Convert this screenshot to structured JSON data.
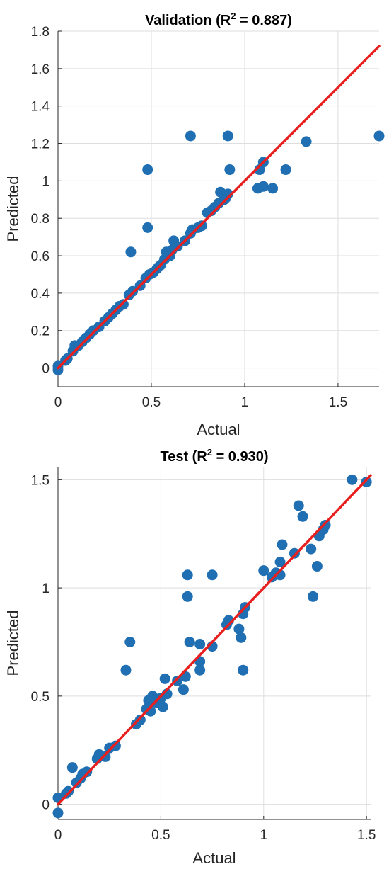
{
  "chart_data": [
    {
      "type": "scatter",
      "title": {
        "prefix": "Validation (R",
        "sup": "2",
        "suffix": " = 0.887)"
      },
      "xlabel": "Actual",
      "ylabel": "Predicted",
      "xlim": [
        0,
        1.72
      ],
      "ylim": [
        -0.1,
        1.8
      ],
      "xticks": [
        0,
        0.5,
        1,
        1.5
      ],
      "xtick_labels": [
        "0",
        "0.5",
        "1",
        "1.5"
      ],
      "yticks": [
        0,
        0.2,
        0.4,
        0.6,
        0.8,
        1,
        1.2,
        1.4,
        1.6,
        1.8
      ],
      "ytick_labels": [
        "0",
        "0.2",
        "0.4",
        "0.6",
        "0.8",
        "1",
        "1.2",
        "1.4",
        "1.6",
        "1.8"
      ],
      "grid": true,
      "colors": {
        "points": "#1f6fb2",
        "fit_line": "#e81f1f",
        "grid": "#dedede",
        "axis": "#262626"
      },
      "fit_line": {
        "x": [
          0,
          1.72
        ],
        "y": [
          0,
          1.72
        ]
      },
      "points": [
        [
          0.0,
          -0.01
        ],
        [
          0.0,
          0.01
        ],
        [
          0.04,
          0.04
        ],
        [
          0.05,
          0.05
        ],
        [
          0.08,
          0.09
        ],
        [
          0.09,
          0.12
        ],
        [
          0.11,
          0.12
        ],
        [
          0.13,
          0.14
        ],
        [
          0.15,
          0.16
        ],
        [
          0.17,
          0.18
        ],
        [
          0.19,
          0.2
        ],
        [
          0.22,
          0.22
        ],
        [
          0.25,
          0.25
        ],
        [
          0.27,
          0.27
        ],
        [
          0.29,
          0.29
        ],
        [
          0.31,
          0.31
        ],
        [
          0.33,
          0.33
        ],
        [
          0.35,
          0.34
        ],
        [
          0.38,
          0.39
        ],
        [
          0.4,
          0.41
        ],
        [
          0.44,
          0.44
        ],
        [
          0.47,
          0.48
        ],
        [
          0.49,
          0.5
        ],
        [
          0.51,
          0.51
        ],
        [
          0.53,
          0.53
        ],
        [
          0.55,
          0.55
        ],
        [
          0.57,
          0.58
        ],
        [
          0.58,
          0.62
        ],
        [
          0.6,
          0.6
        ],
        [
          0.61,
          0.63
        ],
        [
          0.62,
          0.68
        ],
        [
          0.64,
          0.65
        ],
        [
          0.68,
          0.68
        ],
        [
          0.71,
          0.72
        ],
        [
          0.72,
          0.74
        ],
        [
          0.75,
          0.75
        ],
        [
          0.77,
          0.76
        ],
        [
          0.8,
          0.83
        ],
        [
          0.82,
          0.84
        ],
        [
          0.84,
          0.86
        ],
        [
          0.86,
          0.88
        ],
        [
          0.87,
          0.94
        ],
        [
          0.89,
          0.9
        ],
        [
          0.9,
          0.91
        ],
        [
          0.91,
          0.93
        ],
        [
          0.39,
          0.62
        ],
        [
          0.48,
          0.75
        ],
        [
          0.48,
          1.06
        ],
        [
          0.71,
          1.24
        ],
        [
          0.91,
          1.24
        ],
        [
          0.92,
          1.06
        ],
        [
          1.07,
          0.96
        ],
        [
          1.08,
          1.06
        ],
        [
          1.1,
          1.1
        ],
        [
          1.1,
          0.97
        ],
        [
          1.15,
          0.96
        ],
        [
          1.22,
          1.06
        ],
        [
          1.33,
          1.21
        ],
        [
          1.72,
          1.24
        ]
      ]
    },
    {
      "type": "scatter",
      "title": {
        "prefix": "Test (R",
        "sup": "2",
        "suffix": " = 0.930)"
      },
      "xlabel": "Actual",
      "ylabel": "Predicted",
      "xlim": [
        0,
        1.52
      ],
      "ylim": [
        -0.07,
        1.56
      ],
      "xticks": [
        0,
        0.5,
        1,
        1.5
      ],
      "xtick_labels": [
        "0",
        "0.5",
        "1",
        "1.5"
      ],
      "yticks": [
        0,
        0.5,
        1,
        1.5
      ],
      "ytick_labels": [
        "0",
        "0.5",
        "1",
        "1.5"
      ],
      "grid": true,
      "colors": {
        "points": "#1f6fb2",
        "fit_line": "#e81f1f",
        "grid": "#dedede",
        "axis": "#262626"
      },
      "fit_line": {
        "x": [
          0,
          1.52
        ],
        "y": [
          0,
          1.52
        ]
      },
      "points": [
        [
          0.0,
          -0.04
        ],
        [
          0.0,
          0.03
        ],
        [
          0.04,
          0.05
        ],
        [
          0.05,
          0.06
        ],
        [
          0.07,
          0.17
        ],
        [
          0.09,
          0.1
        ],
        [
          0.11,
          0.12
        ],
        [
          0.12,
          0.14
        ],
        [
          0.14,
          0.15
        ],
        [
          0.19,
          0.21
        ],
        [
          0.2,
          0.23
        ],
        [
          0.23,
          0.22
        ],
        [
          0.25,
          0.26
        ],
        [
          0.28,
          0.27
        ],
        [
          0.33,
          0.62
        ],
        [
          0.35,
          0.75
        ],
        [
          0.38,
          0.37
        ],
        [
          0.4,
          0.39
        ],
        [
          0.43,
          0.44
        ],
        [
          0.44,
          0.48
        ],
        [
          0.45,
          0.43
        ],
        [
          0.46,
          0.5
        ],
        [
          0.48,
          0.47
        ],
        [
          0.5,
          0.49
        ],
        [
          0.51,
          0.45
        ],
        [
          0.52,
          0.58
        ],
        [
          0.53,
          0.51
        ],
        [
          0.58,
          0.57
        ],
        [
          0.61,
          0.53
        ],
        [
          0.62,
          0.59
        ],
        [
          0.63,
          1.06
        ],
        [
          0.63,
          0.96
        ],
        [
          0.64,
          0.75
        ],
        [
          0.69,
          0.62
        ],
        [
          0.69,
          0.66
        ],
        [
          0.69,
          0.74
        ],
        [
          0.75,
          0.73
        ],
        [
          0.75,
          1.06
        ],
        [
          0.82,
          0.83
        ],
        [
          0.83,
          0.85
        ],
        [
          0.88,
          0.81
        ],
        [
          0.89,
          0.77
        ],
        [
          0.9,
          0.88
        ],
        [
          0.9,
          0.62
        ],
        [
          0.91,
          0.91
        ],
        [
          1.0,
          1.08
        ],
        [
          1.04,
          1.05
        ],
        [
          1.06,
          1.07
        ],
        [
          1.08,
          1.06
        ],
        [
          1.08,
          1.12
        ],
        [
          1.09,
          1.2
        ],
        [
          1.15,
          1.16
        ],
        [
          1.17,
          1.38
        ],
        [
          1.19,
          1.33
        ],
        [
          1.23,
          1.18
        ],
        [
          1.24,
          0.96
        ],
        [
          1.26,
          1.1
        ],
        [
          1.27,
          1.24
        ],
        [
          1.29,
          1.27
        ],
        [
          1.3,
          1.29
        ],
        [
          1.43,
          1.5
        ],
        [
          1.5,
          1.49
        ]
      ]
    }
  ]
}
